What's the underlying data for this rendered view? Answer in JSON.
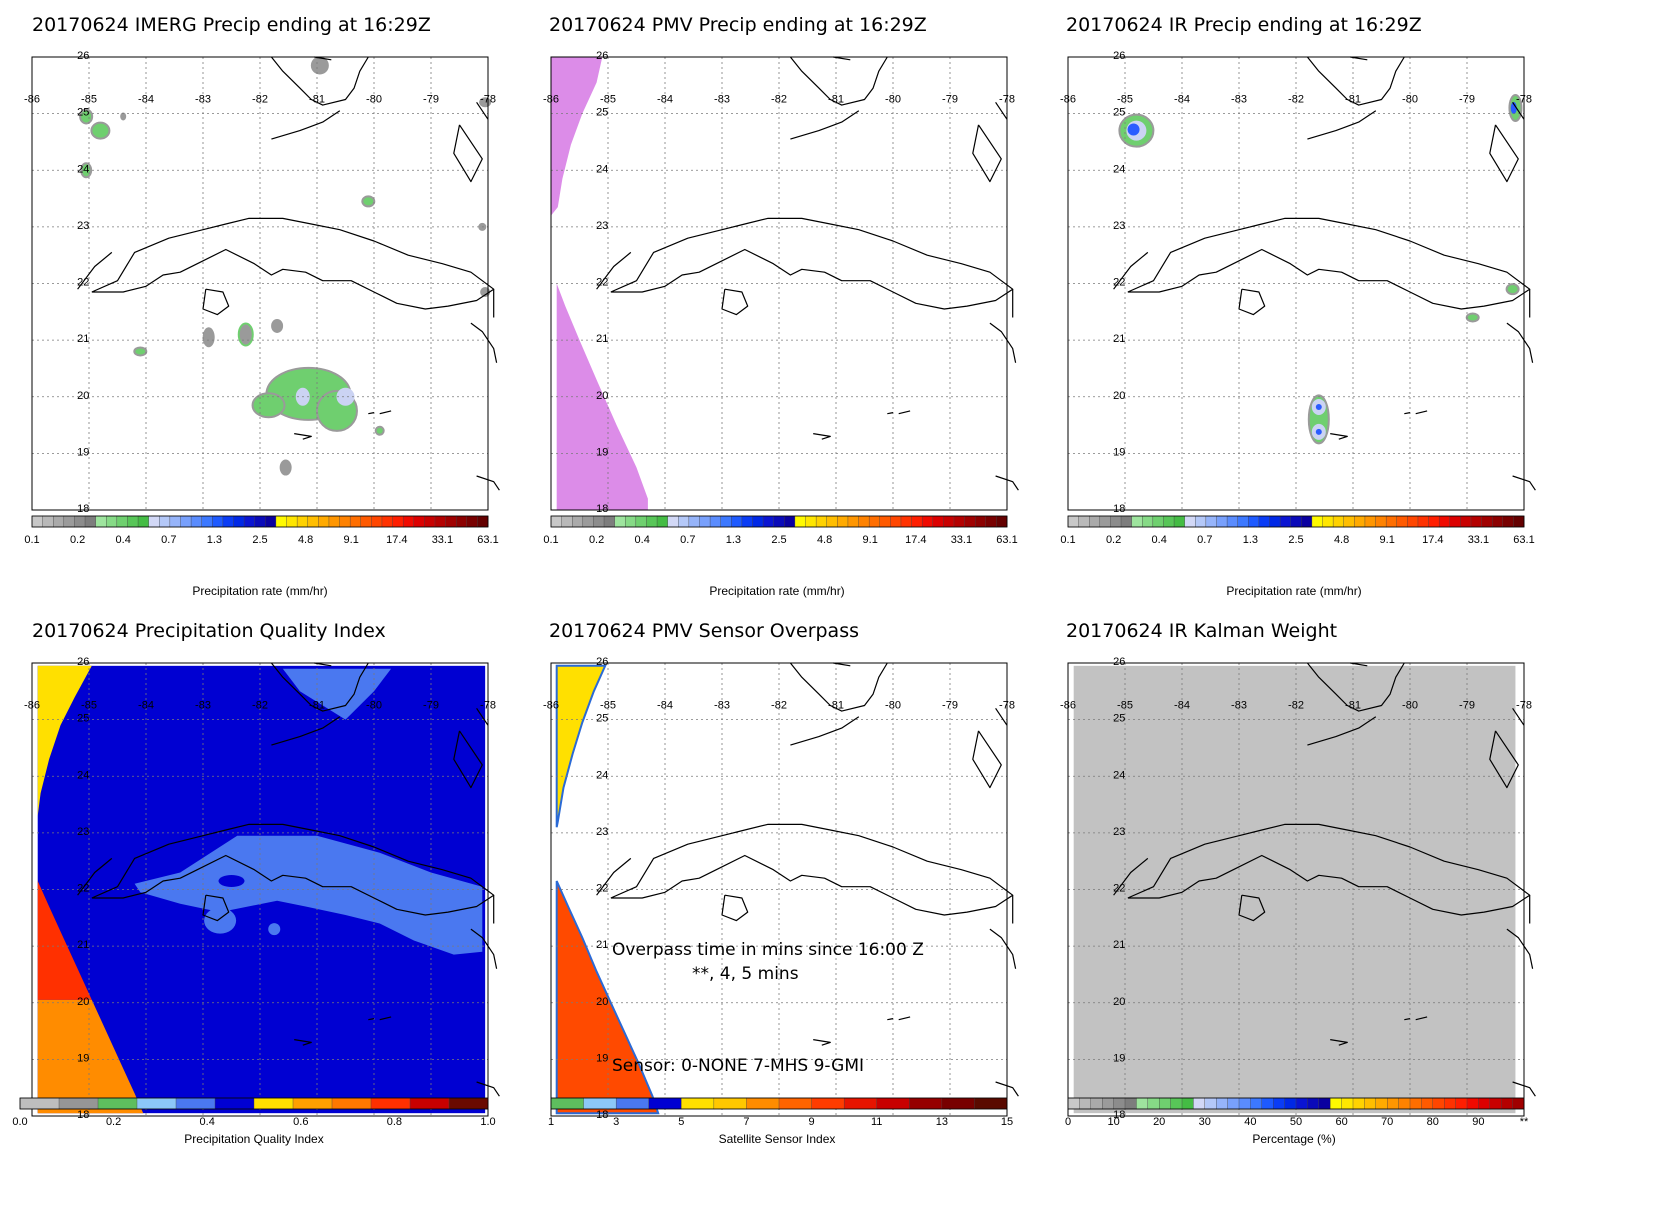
{
  "panels": [
    {
      "id": "imerg",
      "title": "20170624 IMERG Precip ending at 16:29Z",
      "cbar_label": "Precipitation rate (mm/hr)",
      "cbar": "precip"
    },
    {
      "id": "pmv",
      "title": "20170624 PMV Precip ending at 16:29Z",
      "cbar_label": "Precipitation rate (mm/hr)",
      "cbar": "precip"
    },
    {
      "id": "ir",
      "title": "20170624 IR Precip ending at 16:29Z",
      "cbar_label": "Precipitation rate (mm/hr)",
      "cbar": "precip"
    },
    {
      "id": "pqi",
      "title": "20170624 Precipitation Quality Index",
      "cbar_label": "Precipitation Quality Index",
      "cbar": "pqi"
    },
    {
      "id": "overpass",
      "title": "20170624 PMV Sensor Overpass",
      "cbar_label": "Satellite Sensor Index",
      "cbar": "sensor"
    },
    {
      "id": "kalman",
      "title": "20170624 IR Kalman Weight",
      "cbar_label": "Percentage (%)",
      "cbar": "pct"
    }
  ],
  "map_axes": {
    "lon_ticks": [
      "-86",
      "-85",
      "-84",
      "-83",
      "-82",
      "-81",
      "-80",
      "-79",
      "-78"
    ],
    "lat_ticks": [
      "26",
      "25",
      "24",
      "23",
      "22",
      "21",
      "20",
      "19",
      "18"
    ],
    "lon_range": [
      -86,
      -78
    ],
    "lat_range": [
      18,
      26
    ]
  },
  "colorbars": {
    "precip": {
      "labels": [
        "0.1",
        "0.2",
        "0.4",
        "0.7",
        "1.3",
        "2.5",
        "4.8",
        "9.1",
        "17.4",
        "33.1",
        "63.1"
      ],
      "colors": [
        "#c8c8c8",
        "#b9b9b9",
        "#aaaaaa",
        "#9b9b9b",
        "#8c8c8c",
        "#7d7d7d",
        "#9ee49e",
        "#86da86",
        "#6fd06f",
        "#58c658",
        "#44bc44",
        "#d2d8f6",
        "#b4c8f8",
        "#96b4fa",
        "#78a0fc",
        "#5a8cfe",
        "#3c78ff",
        "#1e5aff",
        "#0a3cf5",
        "#0028e6",
        "#0a14d2",
        "#0a0ab9",
        "#0a00a0",
        "#fffa00",
        "#ffe600",
        "#ffd200",
        "#ffbe00",
        "#ffaa00",
        "#ff9600",
        "#ff8200",
        "#ff6e00",
        "#ff5a00",
        "#ff4600",
        "#ff3200",
        "#ff1e00",
        "#f00a00",
        "#dc0000",
        "#c80000",
        "#b40000",
        "#a00000",
        "#8c0000",
        "#780000",
        "#640000"
      ]
    },
    "pqi": {
      "labels": [
        "0.0",
        "0.2",
        "0.4",
        "0.6",
        "0.8",
        "1.0"
      ],
      "colors": [
        "#bebebe",
        "#969696",
        "#5ebe5e",
        "#8cc8f8",
        "#4a78f0",
        "#0000d2",
        "#ffe000",
        "#ffa000",
        "#ff7800",
        "#ff3000",
        "#c80000",
        "#6a0a00"
      ]
    },
    "sensor": {
      "labels": [
        "1",
        "3",
        "5",
        "7",
        "9",
        "11",
        "13",
        "15"
      ],
      "colors": [
        "#5ebe5e",
        "#8cc8f8",
        "#4a78f0",
        "#0000d2",
        "#ffe000",
        "#ffc800",
        "#ff8c00",
        "#ff6400",
        "#ff3c00",
        "#e61400",
        "#c80000",
        "#960000",
        "#780000",
        "#5a0a00"
      ]
    },
    "pct": {
      "labels": [
        "0",
        "10",
        "20",
        "30",
        "40",
        "50",
        "60",
        "70",
        "80",
        "90",
        "**"
      ],
      "colors": [
        "#c8c8c8",
        "#b9b9b9",
        "#aaaaaa",
        "#9b9b9b",
        "#8c8c8c",
        "#7d7d7d",
        "#9ee49e",
        "#86da86",
        "#6fd06f",
        "#58c658",
        "#44bc44",
        "#d2d8f6",
        "#b4c8f8",
        "#96b4fa",
        "#78a0fc",
        "#5a8cfe",
        "#3c78ff",
        "#1e5aff",
        "#0a3cf5",
        "#0028e6",
        "#0a14d2",
        "#0a0ab9",
        "#0a00a0",
        "#fffa00",
        "#ffe600",
        "#ffd200",
        "#ffbe00",
        "#ffaa00",
        "#ff9600",
        "#ff8200",
        "#ff6e00",
        "#ff5a00",
        "#ff4600",
        "#ff3200",
        "#ff1e00",
        "#f00a00",
        "#dc0000",
        "#c80000",
        "#b40000",
        "#a00000"
      ]
    }
  },
  "overpass_notes": {
    "line1": "Overpass time in mins since 16:00 Z",
    "line2": "**, 4, 5 mins",
    "sensor_line": "Sensor:   0-NONE  7-MHS  9-GMI"
  },
  "fill_colors": {
    "precip_green": "#6fcf6f",
    "precip_gray": "#9a9a9a",
    "precip_light": "#cbd3f3",
    "precip_blue": "#2a5cff",
    "pmv_swath": "#dc8ce8",
    "pqi_blue": "#0000d2",
    "pqi_midblue": "#4a78f0",
    "pqi_yellow": "#ffe000",
    "pqi_red": "#ff3000",
    "pqi_orange": "#ff8c00",
    "kalman_gray": "#c2c2c2"
  }
}
